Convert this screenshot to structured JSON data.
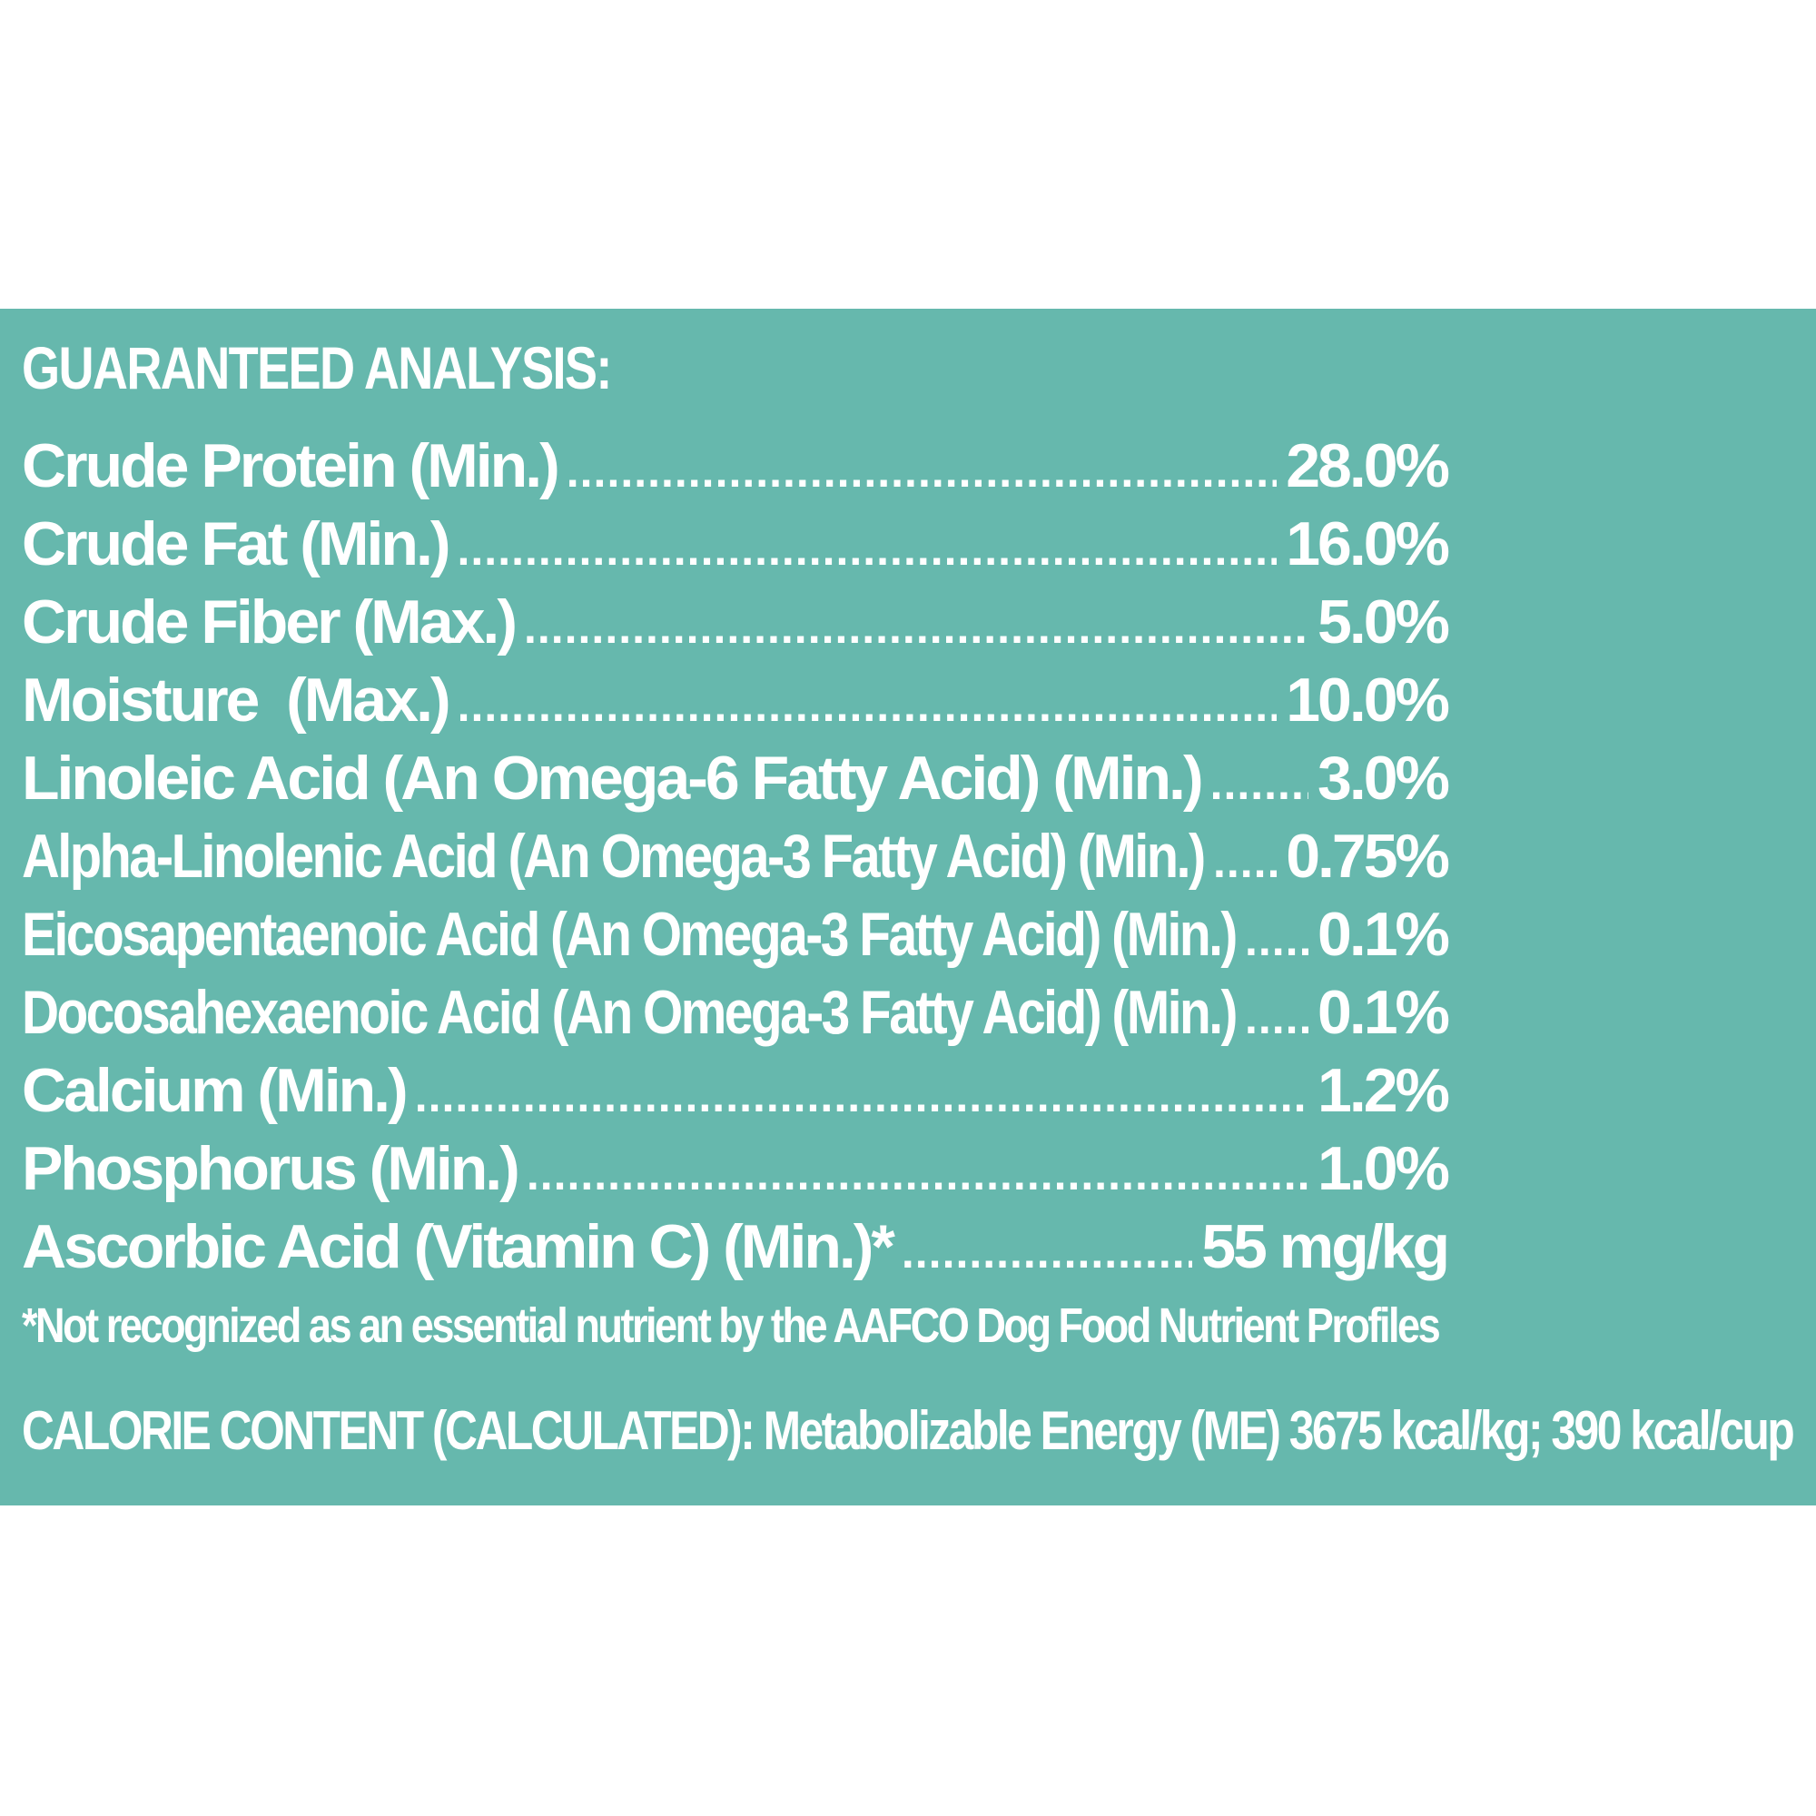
{
  "colors": {
    "panel_background": "#66b8ad",
    "text": "#ffffff",
    "page_background": "#ffffff"
  },
  "heading": "GUARANTEED ANALYSIS:",
  "nutrients": [
    {
      "label": "Crude Protein (Min.)",
      "value": "28.0%"
    },
    {
      "label": "Crude Fat (Min.)",
      "value": "16.0%"
    },
    {
      "label": "Crude Fiber (Max.)",
      "value": "5.0%"
    },
    {
      "label": "Moisture  (Max.)",
      "value": "10.0%"
    },
    {
      "label": "Linoleic Acid (An Omega-6 Fatty Acid) (Min.)",
      "value": "3.0%"
    },
    {
      "label": "Alpha-Linolenic Acid (An Omega-3 Fatty Acid) (Min.)",
      "value": "0.75%"
    },
    {
      "label": "Eicosapentaenoic Acid (An Omega-3 Fatty Acid) (Min.)",
      "value": "0.1%"
    },
    {
      "label": "Docosahexaenoic Acid (An Omega-3 Fatty Acid) (Min.)",
      "value": "0.1%"
    },
    {
      "label": "Calcium (Min.)",
      "value": "1.2%"
    },
    {
      "label": "Phosphorus (Min.)",
      "value": "1.0%"
    },
    {
      "label": "Ascorbic Acid (Vitamin C) (Min.)*",
      "value": "55 mg/kg"
    }
  ],
  "footnote": "*Not recognized as an essential nutrient by the AAFCO Dog Food Nutrient Profiles",
  "calorie_content": "CALORIE CONTENT (CALCULATED): Metabolizable Energy (ME) 3675 kcal/kg; 390 kcal/cup"
}
